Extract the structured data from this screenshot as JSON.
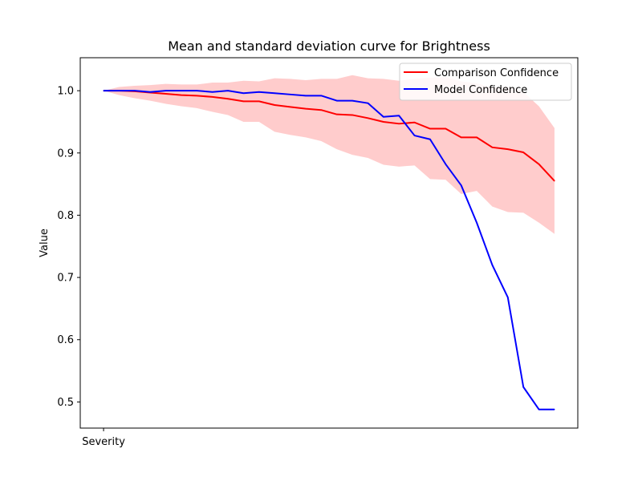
{
  "chart_data": {
    "type": "line",
    "title": "Mean and standard deviation curve for Brightness",
    "xlabel": "",
    "ylabel": "Value",
    "x_tick_labels": [
      "Severity"
    ],
    "y_ticks": [
      0.5,
      0.6,
      0.7,
      0.8,
      0.9,
      1.0
    ],
    "y_tick_labels": [
      "0.5",
      "0.6",
      "0.7",
      "0.8",
      "0.9",
      "1.0"
    ],
    "ylim": [
      0.458,
      1.053
    ],
    "xlim": [
      -1.5,
      30.5
    ],
    "x": [
      0,
      1,
      2,
      3,
      4,
      5,
      6,
      7,
      8,
      9,
      10,
      11,
      12,
      13,
      14,
      15,
      16,
      17,
      18,
      19,
      20,
      21,
      22,
      23,
      24,
      25,
      26,
      27,
      28,
      29
    ],
    "series": [
      {
        "name": "Comparison Confidence",
        "color": "#ff0000",
        "values": [
          1.0,
          1.0,
          0.999,
          0.997,
          0.995,
          0.993,
          0.992,
          0.99,
          0.987,
          0.983,
          0.983,
          0.977,
          0.974,
          0.971,
          0.969,
          0.962,
          0.961,
          0.956,
          0.95,
          0.947,
          0.949,
          0.939,
          0.939,
          0.925,
          0.925,
          0.909,
          0.906,
          0.901,
          0.882,
          0.855
        ],
        "band_upper": [
          1.0,
          1.006,
          1.008,
          1.009,
          1.011,
          1.01,
          1.01,
          1.013,
          1.013,
          1.016,
          1.015,
          1.02,
          1.019,
          1.017,
          1.019,
          1.019,
          1.025,
          1.02,
          1.019,
          1.016,
          1.019,
          1.021,
          1.022,
          1.015,
          1.012,
          1.005,
          1.007,
          0.998,
          0.975,
          0.94
        ],
        "band_lower": [
          1.0,
          0.993,
          0.988,
          0.984,
          0.979,
          0.975,
          0.972,
          0.966,
          0.961,
          0.95,
          0.95,
          0.934,
          0.929,
          0.925,
          0.919,
          0.906,
          0.897,
          0.892,
          0.881,
          0.878,
          0.88,
          0.858,
          0.857,
          0.834,
          0.839,
          0.814,
          0.805,
          0.804,
          0.788,
          0.77
        ],
        "band_color": "#ffcccc"
      },
      {
        "name": "Model Confidence",
        "color": "#0000ff",
        "values": [
          1.0,
          1.0,
          1.0,
          0.998,
          1.0,
          1.0,
          1.0,
          0.998,
          1.0,
          0.996,
          0.998,
          0.996,
          0.994,
          0.992,
          0.992,
          0.984,
          0.984,
          0.98,
          0.958,
          0.96,
          0.928,
          0.922,
          0.882,
          0.848,
          0.788,
          0.72,
          0.668,
          0.524,
          0.488,
          0.488
        ]
      }
    ],
    "legend_position": "top-right",
    "grid": false
  }
}
